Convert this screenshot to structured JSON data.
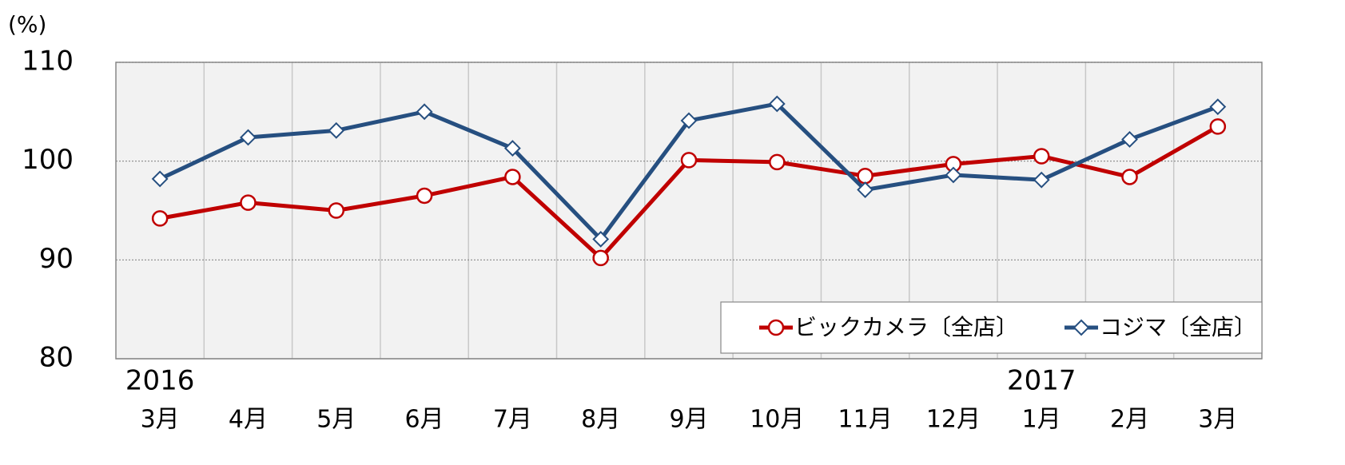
{
  "chart_data": {
    "type": "line",
    "y_axis_label": "(%)",
    "categories": [
      "3月",
      "4月",
      "5月",
      "6月",
      "7月",
      "8月",
      "9月",
      "10月",
      "11月",
      "12月",
      "1月",
      "2月",
      "3月"
    ],
    "year_labels": [
      {
        "category_index": 0,
        "text": "2016"
      },
      {
        "category_index": 10,
        "text": "2017"
      }
    ],
    "series": [
      {
        "name": "ビックカメラ〔全店〕",
        "color": "#c00000",
        "marker": "circle",
        "values": [
          94.2,
          95.8,
          95.0,
          96.5,
          98.4,
          90.2,
          100.1,
          99.9,
          98.5,
          99.7,
          100.5,
          98.4,
          103.5
        ]
      },
      {
        "name": "コジマ〔全店〕",
        "color": "#264f80",
        "marker": "diamond",
        "values": [
          98.2,
          102.4,
          103.1,
          105.0,
          101.3,
          92.1,
          104.1,
          105.8,
          97.1,
          98.6,
          98.1,
          102.2,
          105.5
        ]
      }
    ],
    "ylim": [
      80,
      110
    ],
    "yticks": [
      80,
      90,
      100,
      110
    ],
    "grid": true,
    "legend": "lower right"
  }
}
